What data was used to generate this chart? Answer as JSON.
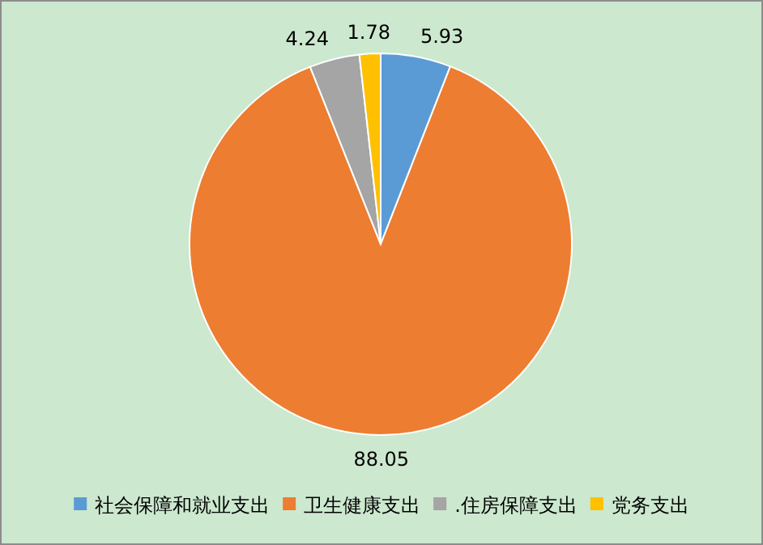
{
  "chart_data": {
    "type": "pie",
    "categories": [
      "社会保障和就业支出",
      "卫生健康支出",
      ".住房保障支出",
      "党务支出"
    ],
    "values": [
      5.93,
      88.05,
      4.24,
      1.78
    ],
    "colors": [
      "#5b9bd5",
      "#ed7d31",
      "#a5a5a5",
      "#ffc000"
    ],
    "data_labels": true,
    "legend": "bottom"
  }
}
